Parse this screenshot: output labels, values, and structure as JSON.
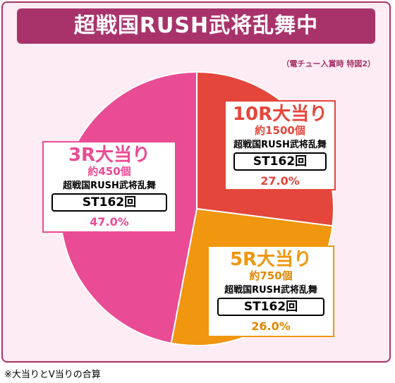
{
  "title": "超戦国RUSH武将乱舞中",
  "subnote": "（電チュー入賞時 特図2）",
  "footnote": "※大当りとV当りの合算",
  "colors": {
    "accent": "#a8336b",
    "slice_10r": "#e4463c",
    "slice_5r": "#f0960f",
    "slice_3r": "#e94b94"
  },
  "chart_data": {
    "type": "pie",
    "title": "超戦国RUSH武将乱舞中",
    "slices": [
      {
        "label": "10R大当り",
        "payout": "約1500個",
        "mode": "超戦国RUSH武将乱舞",
        "st": "ST162回",
        "value": 27.0,
        "pct_label": "27.0%"
      },
      {
        "label": "5R大当り",
        "payout": "約750個",
        "mode": "超戦国RUSH武将乱舞",
        "st": "ST162回",
        "value": 26.0,
        "pct_label": "26.0%"
      },
      {
        "label": "3R大当り",
        "payout": "約450個",
        "mode": "超戦国RUSH武将乱舞",
        "st": "ST162回",
        "value": 47.0,
        "pct_label": "47.0%"
      }
    ]
  }
}
